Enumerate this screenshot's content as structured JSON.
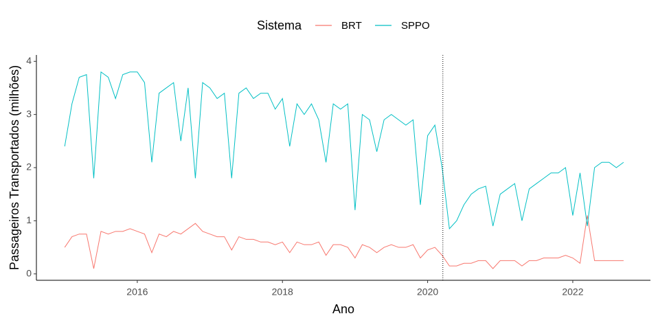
{
  "chart_data": {
    "type": "line",
    "x_label": "Ano",
    "y_label": "Passageiros Transportados (milhões)",
    "legend_title": "Sistema",
    "legend": "top",
    "xlim": [
      2014.61,
      2023.07
    ],
    "xticks": [
      2016,
      2018,
      2020,
      2022
    ],
    "ylim": [
      -0.12,
      4.12
    ],
    "yticks": [
      0,
      1,
      2,
      3,
      4
    ],
    "vline": 2020.21,
    "x": [
      2015.0,
      2015.1,
      2015.2,
      2015.3,
      2015.4,
      2015.5,
      2015.6,
      2015.7,
      2015.8,
      2015.9,
      2016.0,
      2016.1,
      2016.2,
      2016.3,
      2016.4,
      2016.5,
      2016.6,
      2016.7,
      2016.8,
      2016.9,
      2017.0,
      2017.1,
      2017.2,
      2017.3,
      2017.4,
      2017.5,
      2017.6,
      2017.7,
      2017.8,
      2017.9,
      2018.0,
      2018.1,
      2018.2,
      2018.3,
      2018.4,
      2018.5,
      2018.6,
      2018.7,
      2018.8,
      2018.9,
      2019.0,
      2019.1,
      2019.2,
      2019.3,
      2019.4,
      2019.5,
      2019.6,
      2019.7,
      2019.8,
      2019.9,
      2020.0,
      2020.1,
      2020.2,
      2020.3,
      2020.4,
      2020.5,
      2020.6,
      2020.7,
      2020.8,
      2020.9,
      2021.0,
      2021.1,
      2021.2,
      2021.3,
      2021.4,
      2021.5,
      2021.6,
      2021.7,
      2021.8,
      2021.9,
      2022.0,
      2022.1,
      2022.2,
      2022.3,
      2022.4,
      2022.5,
      2022.6,
      2022.7
    ],
    "series": [
      {
        "name": "BRT",
        "color": "#F8766D",
        "values": [
          0.5,
          0.7,
          0.75,
          0.75,
          0.1,
          0.8,
          0.75,
          0.8,
          0.8,
          0.85,
          0.8,
          0.75,
          0.4,
          0.75,
          0.7,
          0.8,
          0.75,
          0.85,
          0.95,
          0.8,
          0.75,
          0.7,
          0.7,
          0.45,
          0.7,
          0.65,
          0.65,
          0.6,
          0.6,
          0.55,
          0.6,
          0.4,
          0.6,
          0.55,
          0.55,
          0.6,
          0.35,
          0.55,
          0.55,
          0.5,
          0.3,
          0.55,
          0.5,
          0.4,
          0.5,
          0.55,
          0.5,
          0.5,
          0.55,
          0.3,
          0.45,
          0.5,
          0.35,
          0.15,
          0.15,
          0.2,
          0.2,
          0.25,
          0.25,
          0.1,
          0.25,
          0.25,
          0.25,
          0.15,
          0.25,
          0.25,
          0.3,
          0.3,
          0.3,
          0.35,
          0.3,
          0.2,
          1.1,
          0.25,
          0.25,
          0.25,
          0.25,
          0.25
        ]
      },
      {
        "name": "SPPO",
        "color": "#00BFC4",
        "values": [
          2.4,
          3.2,
          3.7,
          3.75,
          1.8,
          3.8,
          3.7,
          3.3,
          3.75,
          3.8,
          3.8,
          3.6,
          2.1,
          3.4,
          3.5,
          3.6,
          2.5,
          3.5,
          1.8,
          3.6,
          3.5,
          3.3,
          3.4,
          1.8,
          3.4,
          3.5,
          3.3,
          3.4,
          3.4,
          3.1,
          3.3,
          2.4,
          3.2,
          3.0,
          3.2,
          2.9,
          2.1,
          3.2,
          3.1,
          3.2,
          1.2,
          3.0,
          2.9,
          2.3,
          2.9,
          3.0,
          2.9,
          2.8,
          2.9,
          1.3,
          2.6,
          2.8,
          2.0,
          0.85,
          1.0,
          1.3,
          1.5,
          1.6,
          1.65,
          0.9,
          1.5,
          1.6,
          1.7,
          1.0,
          1.6,
          1.7,
          1.8,
          1.9,
          1.9,
          2.0,
          1.1,
          1.9,
          0.9,
          2.0,
          2.1,
          2.1,
          2.0,
          2.1
        ]
      }
    ]
  }
}
